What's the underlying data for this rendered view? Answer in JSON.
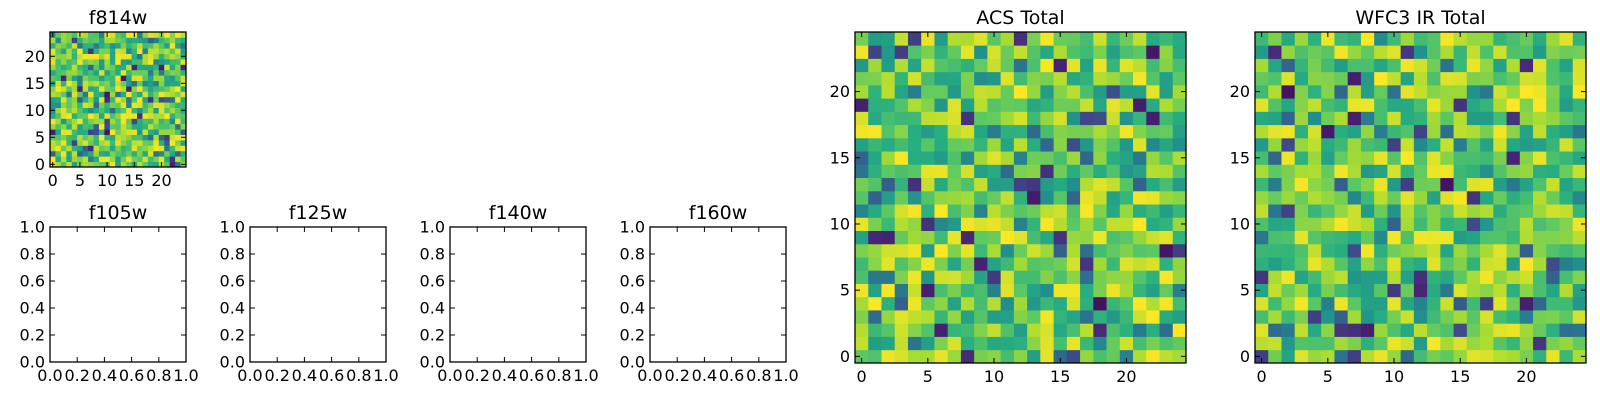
{
  "chart_data": [
    {
      "type": "heatmap",
      "title": "f814w",
      "xlim": [
        -0.5,
        24.5
      ],
      "ylim": [
        -0.5,
        24.5
      ],
      "xticks": [
        0,
        5,
        10,
        15,
        20
      ],
      "yticks": [
        0,
        5,
        10,
        15,
        20
      ],
      "grid_size": [
        25,
        25
      ],
      "colormap": "viridis",
      "grid": false
    },
    {
      "type": "heatmap",
      "title": "f105w",
      "xlim": [
        0.0,
        1.0
      ],
      "ylim": [
        0.0,
        1.0
      ],
      "xticks": [
        "0.0",
        "0.2",
        "0.4",
        "0.6",
        "0.8",
        "1.0"
      ],
      "yticks": [
        "0.0",
        "0.2",
        "0.4",
        "0.6",
        "0.8",
        "1.0"
      ],
      "empty": true
    },
    {
      "type": "heatmap",
      "title": "f125w",
      "xlim": [
        0.0,
        1.0
      ],
      "ylim": [
        0.0,
        1.0
      ],
      "xticks": [
        "0.0",
        "0.2",
        "0.4",
        "0.6",
        "0.8",
        "1.0"
      ],
      "yticks": [
        "0.0",
        "0.2",
        "0.4",
        "0.6",
        "0.8",
        "1.0"
      ],
      "empty": true
    },
    {
      "type": "heatmap",
      "title": "f140w",
      "xlim": [
        0.0,
        1.0
      ],
      "ylim": [
        0.0,
        1.0
      ],
      "xticks": [
        "0.0",
        "0.2",
        "0.4",
        "0.6",
        "0.8",
        "1.0"
      ],
      "yticks": [
        "0.0",
        "0.2",
        "0.4",
        "0.6",
        "0.8",
        "1.0"
      ],
      "empty": true
    },
    {
      "type": "heatmap",
      "title": "f160w",
      "xlim": [
        0.0,
        1.0
      ],
      "ylim": [
        0.0,
        1.0
      ],
      "xticks": [
        "0.0",
        "0.2",
        "0.4",
        "0.6",
        "0.8",
        "1.0"
      ],
      "yticks": [
        "0.0",
        "0.2",
        "0.4",
        "0.6",
        "0.8",
        "1.0"
      ],
      "empty": true
    },
    {
      "type": "heatmap",
      "title": "ACS Total",
      "xlim": [
        -0.5,
        24.5
      ],
      "ylim": [
        -0.5,
        24.5
      ],
      "xticks": [
        0,
        5,
        10,
        15,
        20
      ],
      "yticks": [
        0,
        5,
        10,
        15,
        20
      ],
      "grid_size": [
        25,
        25
      ],
      "colormap": "viridis",
      "grid": false
    },
    {
      "type": "heatmap",
      "title": "WFC3 IR Total",
      "xlim": [
        -0.5,
        24.5
      ],
      "ylim": [
        -0.5,
        24.5
      ],
      "xticks": [
        0,
        5,
        10,
        15,
        20
      ],
      "yticks": [
        0,
        5,
        10,
        15,
        20
      ],
      "grid_size": [
        25,
        25
      ],
      "colormap": "viridis",
      "grid": false
    }
  ]
}
